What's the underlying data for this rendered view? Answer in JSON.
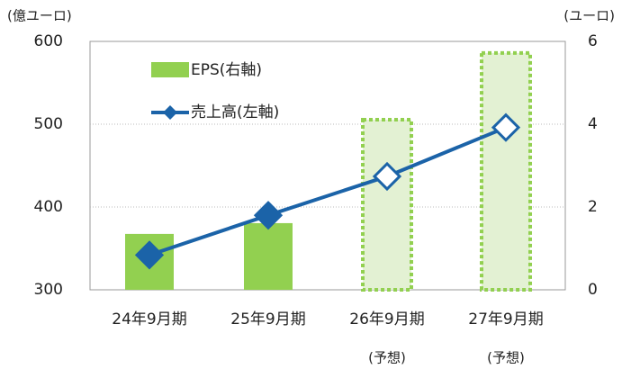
{
  "chart_data": {
    "type": "bar_line",
    "y_label": "(億ユーロ)",
    "y2_label": "(ユーロ)",
    "categories": [
      "24年9月期",
      "25年9月期",
      "26年9月期",
      "27年9月期"
    ],
    "category_notes": [
      null,
      null,
      "(予想)",
      "(予想)"
    ],
    "forecast": [
      false,
      false,
      true,
      true
    ],
    "series": [
      {
        "name": "EPS(右軸)",
        "type": "bar",
        "axis": "y2",
        "color": "#92d050",
        "forecast_color": "#e3f1d3",
        "values": [
          1.35,
          1.61,
          4.11,
          5.72
        ]
      },
      {
        "name": "売上高(左軸)",
        "type": "line",
        "color": "#1b63a8",
        "values": [
          342,
          390,
          437,
          496
        ]
      }
    ],
    "ylim": [
      300,
      600
    ],
    "yticks": [
      300,
      400,
      500,
      600
    ],
    "y2lim": [
      0,
      6
    ],
    "y2ticks": [
      0,
      2,
      4,
      6
    ],
    "grid": true
  }
}
